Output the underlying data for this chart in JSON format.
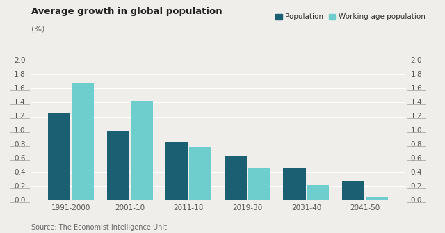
{
  "title": "Average growth in global population",
  "subtitle": "(%)",
  "categories": [
    "1991-2000",
    "2001-10",
    "2011-18",
    "2019-30",
    "2031-40",
    "2041-50"
  ],
  "population": [
    1.25,
    1.0,
    0.84,
    0.63,
    0.46,
    0.28
  ],
  "working_age": [
    1.67,
    1.42,
    0.77,
    0.46,
    0.22,
    0.05
  ],
  "population_color": "#1a5f72",
  "working_age_color": "#6ecece",
  "ylim": [
    0.0,
    2.0
  ],
  "yticks": [
    0.0,
    0.2,
    0.4,
    0.6,
    0.8,
    1.0,
    1.2,
    1.4,
    1.6,
    1.8,
    2.0
  ],
  "source": "Source: The Economist Intelligence Unit.",
  "legend_population": "Population",
  "legend_working_age": "Working-age population",
  "background_color": "#f0eeeb"
}
